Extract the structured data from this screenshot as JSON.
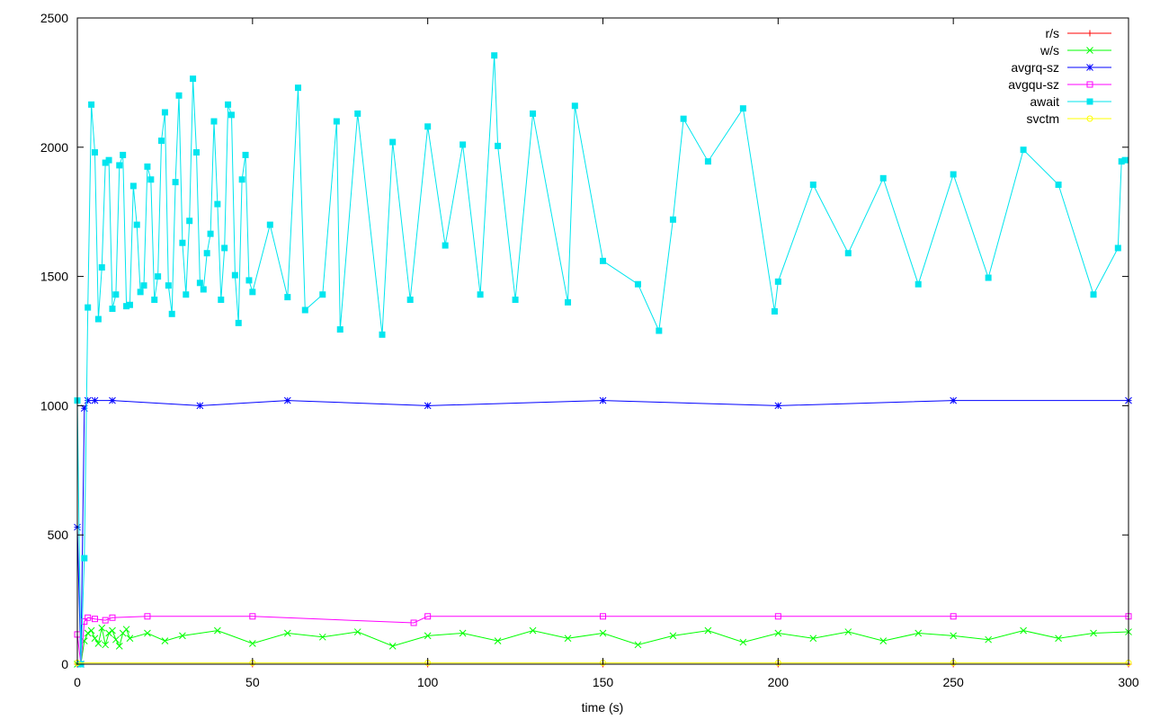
{
  "chart_data": {
    "type": "line",
    "xlabel": "time (s)",
    "ylabel": "",
    "xlim": [
      0,
      300
    ],
    "ylim": [
      0,
      2500
    ],
    "xticks": [
      0,
      50,
      100,
      150,
      200,
      250,
      300
    ],
    "yticks": [
      0,
      500,
      1000,
      1500,
      2000,
      2500
    ],
    "grid": false,
    "legend_position": "top-right",
    "series": [
      {
        "name": "r/s",
        "color": "#ff0000",
        "marker": "plus",
        "x": [
          0,
          50,
          100,
          150,
          200,
          250,
          300
        ],
        "y": [
          0,
          0,
          0,
          0,
          0,
          0,
          0
        ]
      },
      {
        "name": "w/s",
        "color": "#00ff00",
        "marker": "cross",
        "x": [
          0,
          1,
          2,
          3,
          4,
          5,
          6,
          7,
          8,
          9,
          10,
          11,
          12,
          13,
          14,
          15,
          20,
          25,
          30,
          40,
          50,
          60,
          70,
          80,
          90,
          100,
          110,
          120,
          130,
          140,
          150,
          160,
          170,
          180,
          190,
          200,
          210,
          220,
          230,
          240,
          250,
          260,
          270,
          280,
          290,
          300
        ],
        "y": [
          0,
          0,
          90,
          120,
          130,
          100,
          80,
          140,
          75,
          120,
          130,
          95,
          70,
          120,
          135,
          100,
          120,
          90,
          110,
          130,
          80,
          120,
          105,
          125,
          70,
          110,
          120,
          90,
          130,
          100,
          120,
          75,
          110,
          130,
          85,
          120,
          100,
          125,
          90,
          120,
          110,
          95,
          130,
          100,
          120,
          125
        ]
      },
      {
        "name": "avgrq-sz",
        "color": "#0000ff",
        "marker": "star",
        "x": [
          0,
          1,
          2,
          3,
          5,
          10,
          35,
          60,
          100,
          150,
          200,
          250,
          300
        ],
        "y": [
          530,
          0,
          990,
          1020,
          1020,
          1020,
          1000,
          1020,
          1000,
          1020,
          1000,
          1020,
          1020
        ]
      },
      {
        "name": "avgqu-sz",
        "color": "#ff00ff",
        "marker": "square",
        "x": [
          0,
          1,
          2,
          3,
          5,
          8,
          10,
          20,
          50,
          96,
          100,
          150,
          200,
          250,
          300
        ],
        "y": [
          115,
          0,
          165,
          180,
          175,
          170,
          180,
          185,
          185,
          160,
          185,
          185,
          185,
          185,
          185
        ]
      },
      {
        "name": "await",
        "color": "#00e5ee",
        "marker": "filled-square",
        "x": [
          0,
          1,
          2,
          3,
          4,
          5,
          6,
          7,
          8,
          9,
          10,
          11,
          12,
          13,
          14,
          15,
          16,
          17,
          18,
          19,
          20,
          21,
          22,
          23,
          24,
          25,
          26,
          27,
          28,
          29,
          30,
          31,
          32,
          33,
          34,
          35,
          36,
          37,
          38,
          39,
          40,
          41,
          42,
          43,
          44,
          45,
          46,
          47,
          48,
          49,
          50,
          55,
          60,
          63,
          65,
          70,
          74,
          75,
          80,
          87,
          90,
          95,
          100,
          105,
          110,
          115,
          119,
          120,
          125,
          130,
          140,
          142,
          150,
          160,
          166,
          170,
          173,
          180,
          190,
          199,
          200,
          210,
          220,
          230,
          240,
          250,
          260,
          270,
          280,
          290,
          297,
          298,
          299
        ],
        "y": [
          1020,
          0,
          410,
          1380,
          2165,
          1980,
          1335,
          1535,
          1940,
          1950,
          1375,
          1430,
          1930,
          1970,
          1385,
          1390,
          1850,
          1700,
          1440,
          1465,
          1925,
          1875,
          1410,
          1500,
          2025,
          2135,
          1465,
          1355,
          1865,
          2200,
          1630,
          1430,
          1715,
          2265,
          1980,
          1475,
          1450,
          1590,
          1665,
          2100,
          1780,
          1410,
          1610,
          2165,
          2125,
          1505,
          1320,
          1875,
          1970,
          1485,
          1440,
          1700,
          1420,
          2230,
          1370,
          1430,
          2100,
          1295,
          2130,
          1275,
          2020,
          1410,
          2080,
          1620,
          2010,
          1430,
          2355,
          2005,
          1410,
          2130,
          1400,
          2160,
          1560,
          1470,
          1290,
          1720,
          2110,
          1945,
          2150,
          1365,
          1480,
          1855,
          1590,
          1880,
          1470,
          1895,
          1495,
          1990,
          1855,
          1430,
          1610,
          1945,
          1950
        ]
      },
      {
        "name": "svctm",
        "color": "#ffff00",
        "marker": "circle",
        "x": [
          0,
          50,
          100,
          150,
          200,
          250,
          300
        ],
        "y": [
          5,
          5,
          5,
          5,
          5,
          5,
          5
        ]
      }
    ]
  }
}
